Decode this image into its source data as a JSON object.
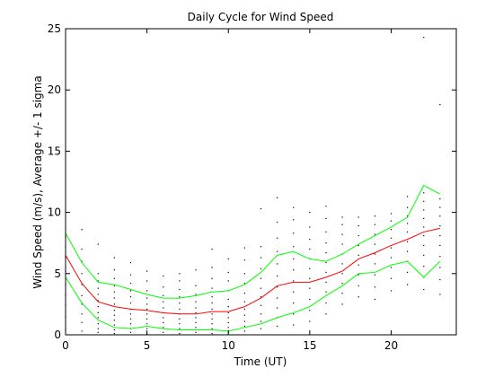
{
  "chart_data": {
    "type": "line",
    "title": "Daily Cycle for Wind Speed",
    "xlabel": "Time (UT)",
    "ylabel": "Wind Speed (m/s), Average +/- 1 sigma",
    "xlim": [
      0,
      24
    ],
    "ylim": [
      0,
      25
    ],
    "x_ticks": [
      0,
      5,
      10,
      15,
      20
    ],
    "y_ticks": [
      0,
      5,
      10,
      15,
      20,
      25
    ],
    "grid": false,
    "x": [
      0,
      1,
      2,
      3,
      4,
      5,
      6,
      7,
      8,
      9,
      10,
      11,
      12,
      13,
      14,
      15,
      16,
      17,
      18,
      19,
      20,
      21,
      22,
      23
    ],
    "series": [
      {
        "color": "#00ff00",
        "values": [
          8.3,
          5.9,
          4.3,
          4.1,
          3.7,
          3.3,
          3.0,
          3.0,
          3.2,
          3.5,
          3.6,
          4.1,
          5.1,
          6.5,
          6.8,
          6.2,
          6.0,
          6.6,
          7.4,
          8.1,
          8.8,
          9.6,
          12.2,
          11.5
        ]
      },
      {
        "color": "#ff0000",
        "values": [
          6.5,
          4.2,
          2.7,
          2.3,
          2.1,
          2.0,
          1.8,
          1.7,
          1.7,
          1.9,
          1.9,
          2.3,
          3.0,
          4.0,
          4.3,
          4.3,
          4.7,
          5.2,
          6.2,
          6.7,
          7.3,
          7.8,
          8.4,
          8.7
        ]
      },
      {
        "color": "#00ff00",
        "values": [
          4.7,
          2.6,
          1.2,
          0.6,
          0.5,
          0.7,
          0.5,
          0.4,
          0.4,
          0.4,
          0.3,
          0.6,
          0.9,
          1.4,
          1.8,
          2.3,
          3.2,
          4.0,
          5.0,
          5.1,
          5.7,
          6.0,
          4.7,
          6.0
        ]
      }
    ],
    "scatter_color": "#000000",
    "scatter": [
      {
        "x": 0,
        "y": [
          0.4,
          1.5,
          2.4,
          3.3,
          4.1,
          5.2,
          6.3,
          7.2,
          8.0
        ]
      },
      {
        "x": 1,
        "y": [
          0.3,
          1.0,
          1.7,
          2.5,
          3.2,
          4.1,
          5.0,
          6.0,
          7.0,
          8.6
        ]
      },
      {
        "x": 2,
        "y": [
          0.2,
          0.5,
          0.9,
          1.4,
          1.8,
          2.3,
          2.8,
          3.3,
          3.8,
          4.4,
          5.0,
          7.4
        ]
      },
      {
        "x": 3,
        "y": [
          0.1,
          0.4,
          0.8,
          1.2,
          1.6,
          2.0,
          2.5,
          3.0,
          3.5,
          4.0,
          4.6,
          5.3,
          6.3
        ]
      },
      {
        "x": 4,
        "y": [
          0.2,
          0.5,
          0.9,
          1.3,
          1.7,
          2.1,
          2.6,
          3.1,
          3.6,
          4.2,
          4.9,
          5.9
        ]
      },
      {
        "x": 5,
        "y": [
          0.1,
          0.5,
          0.9,
          1.3,
          1.7,
          2.1,
          2.5,
          3.0,
          3.6,
          4.4,
          5.2
        ]
      },
      {
        "x": 6,
        "y": [
          0.2,
          0.6,
          1.0,
          1.4,
          1.8,
          2.2,
          2.7,
          3.2,
          3.9,
          4.8
        ]
      },
      {
        "x": 7,
        "y": [
          0.1,
          0.5,
          0.9,
          1.3,
          1.7,
          2.1,
          2.6,
          3.1,
          3.7,
          4.4,
          5.0
        ]
      },
      {
        "x": 8,
        "y": [
          0.2,
          0.6,
          1.0,
          1.4,
          1.8,
          2.2,
          2.7,
          3.3,
          4.0,
          5.3
        ]
      },
      {
        "x": 9,
        "y": [
          0.1,
          0.5,
          0.9,
          1.3,
          1.7,
          2.1,
          2.6,
          3.1,
          3.8,
          4.6,
          5.5,
          7.0
        ]
      },
      {
        "x": 10,
        "y": [
          0.2,
          0.6,
          1.0,
          1.4,
          1.8,
          2.3,
          2.9,
          3.6,
          4.4,
          5.1,
          6.2
        ]
      },
      {
        "x": 11,
        "y": [
          0.3,
          0.7,
          1.1,
          1.6,
          2.1,
          2.7,
          3.4,
          4.2,
          5.0,
          6.1,
          7.1
        ]
      },
      {
        "x": 12,
        "y": [
          0.5,
          1.1,
          1.7,
          2.4,
          3.1,
          3.8,
          4.6,
          5.4,
          6.3,
          7.2,
          10.3
        ]
      },
      {
        "x": 13,
        "y": [
          0.7,
          1.4,
          2.2,
          3.0,
          3.9,
          4.8,
          5.8,
          6.8,
          7.9,
          9.2,
          11.2
        ]
      },
      {
        "x": 14,
        "y": [
          0.8,
          1.7,
          2.6,
          3.5,
          4.4,
          5.3,
          6.2,
          7.2,
          8.3,
          9.4,
          10.4
        ]
      },
      {
        "x": 15,
        "y": [
          1.1,
          2.0,
          2.9,
          3.8,
          4.6,
          5.4,
          6.2,
          7.0,
          7.8,
          8.8,
          10.0
        ]
      },
      {
        "x": 16,
        "y": [
          1.7,
          2.6,
          3.5,
          4.3,
          5.1,
          5.9,
          6.7,
          7.5,
          8.4,
          9.5,
          10.5
        ]
      },
      {
        "x": 17,
        "y": [
          2.5,
          3.4,
          4.2,
          5.0,
          5.8,
          6.6,
          7.4,
          8.2,
          9.0,
          9.6
        ]
      },
      {
        "x": 18,
        "y": [
          3.1,
          4.0,
          4.9,
          5.7,
          6.5,
          7.3,
          8.1,
          8.9,
          9.6
        ]
      },
      {
        "x": 19,
        "y": [
          2.9,
          3.9,
          4.9,
          5.8,
          6.6,
          7.4,
          8.2,
          9.0,
          9.7
        ]
      },
      {
        "x": 20,
        "y": [
          3.6,
          4.6,
          5.5,
          6.3,
          7.1,
          7.9,
          8.6,
          9.3,
          9.9
        ]
      },
      {
        "x": 21,
        "y": [
          4.1,
          5.1,
          6.0,
          6.8,
          7.6,
          8.4,
          9.1,
          9.7,
          10.4,
          11.3
        ]
      },
      {
        "x": 22,
        "y": [
          3.7,
          4.7,
          5.6,
          6.5,
          7.3,
          8.1,
          8.8,
          9.5,
          10.2,
          10.9,
          11.6,
          24.3
        ]
      },
      {
        "x": 23,
        "y": [
          3.3,
          4.5,
          5.5,
          6.4,
          7.3,
          8.1,
          8.9,
          9.7,
          10.4,
          11.1,
          18.8
        ]
      }
    ]
  }
}
